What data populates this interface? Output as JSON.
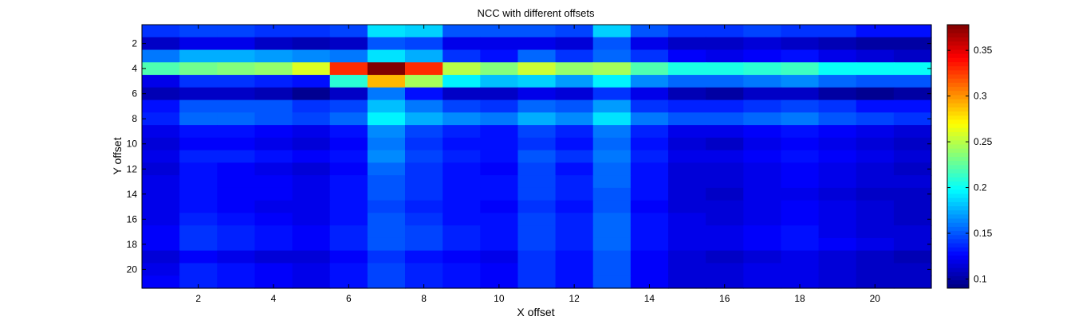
{
  "chart_data": {
    "type": "heatmap",
    "title": "NCC with different offsets",
    "xlabel": "X offset",
    "ylabel": "Y offset",
    "colormap": "jet",
    "x": [
      1,
      2,
      3,
      4,
      5,
      6,
      7,
      8,
      9,
      10,
      11,
      12,
      13,
      14,
      15,
      16,
      17,
      18,
      19,
      20,
      21
    ],
    "y": [
      1,
      2,
      3,
      4,
      5,
      6,
      7,
      8,
      9,
      10,
      11,
      12,
      13,
      14,
      15,
      16,
      17,
      18,
      19,
      20,
      21
    ],
    "xlim": [
      0.5,
      21.5
    ],
    "ylim": [
      0.5,
      21.5
    ],
    "y_direction": "reverse",
    "xticks": [
      2,
      4,
      6,
      8,
      10,
      12,
      14,
      16,
      18,
      20
    ],
    "yticks": [
      2,
      4,
      6,
      8,
      10,
      12,
      14,
      16,
      18,
      20
    ],
    "clim": [
      0.09,
      0.378
    ],
    "colorbar_ticks": [
      0.1,
      0.15,
      0.2,
      0.25,
      0.3,
      0.35
    ],
    "colorbar_tick_labels": [
      "0.1",
      "0.15",
      "0.2",
      "0.25",
      "0.3",
      "0.35"
    ],
    "values": [
      [
        0.14,
        0.145,
        0.145,
        0.14,
        0.14,
        0.145,
        0.19,
        0.185,
        0.15,
        0.15,
        0.15,
        0.145,
        0.185,
        0.15,
        0.14,
        0.14,
        0.145,
        0.14,
        0.14,
        0.13,
        0.13
      ],
      [
        0.11,
        0.12,
        0.12,
        0.11,
        0.105,
        0.11,
        0.15,
        0.145,
        0.12,
        0.12,
        0.12,
        0.115,
        0.15,
        0.12,
        0.11,
        0.11,
        0.115,
        0.11,
        0.105,
        0.1,
        0.1
      ],
      [
        0.16,
        0.175,
        0.175,
        0.17,
        0.165,
        0.16,
        0.19,
        0.175,
        0.14,
        0.13,
        0.155,
        0.14,
        0.155,
        0.14,
        0.125,
        0.12,
        0.125,
        0.13,
        0.12,
        0.115,
        0.11
      ],
      [
        0.22,
        0.23,
        0.235,
        0.24,
        0.26,
        0.33,
        0.378,
        0.33,
        0.25,
        0.235,
        0.255,
        0.24,
        0.245,
        0.22,
        0.205,
        0.205,
        0.21,
        0.215,
        0.2,
        0.2,
        0.2
      ],
      [
        0.12,
        0.14,
        0.14,
        0.135,
        0.13,
        0.21,
        0.29,
        0.245,
        0.195,
        0.18,
        0.185,
        0.17,
        0.195,
        0.165,
        0.155,
        0.155,
        0.16,
        0.165,
        0.155,
        0.15,
        0.15
      ],
      [
        0.105,
        0.11,
        0.11,
        0.105,
        0.095,
        0.11,
        0.16,
        0.13,
        0.11,
        0.11,
        0.12,
        0.115,
        0.14,
        0.12,
        0.105,
        0.1,
        0.11,
        0.11,
        0.1,
        0.095,
        0.1
      ],
      [
        0.13,
        0.15,
        0.15,
        0.15,
        0.14,
        0.145,
        0.18,
        0.16,
        0.145,
        0.14,
        0.155,
        0.15,
        0.17,
        0.14,
        0.135,
        0.135,
        0.14,
        0.145,
        0.14,
        0.13,
        0.13
      ],
      [
        0.135,
        0.155,
        0.155,
        0.15,
        0.145,
        0.155,
        0.195,
        0.175,
        0.165,
        0.16,
        0.175,
        0.165,
        0.19,
        0.16,
        0.15,
        0.15,
        0.155,
        0.16,
        0.15,
        0.145,
        0.14
      ],
      [
        0.12,
        0.13,
        0.13,
        0.125,
        0.12,
        0.13,
        0.165,
        0.145,
        0.135,
        0.13,
        0.145,
        0.135,
        0.16,
        0.135,
        0.12,
        0.12,
        0.125,
        0.13,
        0.125,
        0.12,
        0.115
      ],
      [
        0.115,
        0.125,
        0.125,
        0.12,
        0.115,
        0.125,
        0.16,
        0.14,
        0.13,
        0.13,
        0.14,
        0.13,
        0.155,
        0.13,
        0.115,
        0.11,
        0.12,
        0.125,
        0.12,
        0.115,
        0.11
      ],
      [
        0.12,
        0.135,
        0.135,
        0.13,
        0.125,
        0.13,
        0.165,
        0.145,
        0.135,
        0.13,
        0.15,
        0.14,
        0.16,
        0.135,
        0.12,
        0.12,
        0.125,
        0.13,
        0.125,
        0.12,
        0.115
      ],
      [
        0.115,
        0.13,
        0.125,
        0.12,
        0.115,
        0.125,
        0.155,
        0.14,
        0.13,
        0.125,
        0.145,
        0.13,
        0.155,
        0.13,
        0.115,
        0.115,
        0.12,
        0.125,
        0.12,
        0.115,
        0.11
      ],
      [
        0.12,
        0.13,
        0.125,
        0.125,
        0.12,
        0.13,
        0.15,
        0.14,
        0.13,
        0.13,
        0.145,
        0.135,
        0.155,
        0.13,
        0.115,
        0.115,
        0.12,
        0.125,
        0.12,
        0.115,
        0.115
      ],
      [
        0.12,
        0.13,
        0.125,
        0.125,
        0.12,
        0.13,
        0.15,
        0.14,
        0.13,
        0.13,
        0.145,
        0.135,
        0.15,
        0.13,
        0.115,
        0.11,
        0.12,
        0.12,
        0.115,
        0.11,
        0.11
      ],
      [
        0.12,
        0.13,
        0.125,
        0.12,
        0.12,
        0.13,
        0.145,
        0.135,
        0.13,
        0.125,
        0.14,
        0.13,
        0.15,
        0.125,
        0.115,
        0.115,
        0.12,
        0.125,
        0.12,
        0.115,
        0.11
      ],
      [
        0.12,
        0.135,
        0.13,
        0.125,
        0.12,
        0.13,
        0.15,
        0.14,
        0.13,
        0.13,
        0.145,
        0.135,
        0.155,
        0.13,
        0.12,
        0.115,
        0.12,
        0.125,
        0.12,
        0.115,
        0.11
      ],
      [
        0.125,
        0.14,
        0.135,
        0.13,
        0.125,
        0.135,
        0.15,
        0.145,
        0.135,
        0.13,
        0.145,
        0.135,
        0.155,
        0.13,
        0.12,
        0.12,
        0.125,
        0.13,
        0.12,
        0.115,
        0.115
      ],
      [
        0.125,
        0.14,
        0.135,
        0.13,
        0.125,
        0.135,
        0.15,
        0.145,
        0.135,
        0.13,
        0.145,
        0.135,
        0.155,
        0.13,
        0.12,
        0.12,
        0.125,
        0.13,
        0.125,
        0.12,
        0.115
      ],
      [
        0.115,
        0.125,
        0.12,
        0.115,
        0.115,
        0.125,
        0.14,
        0.13,
        0.125,
        0.12,
        0.14,
        0.13,
        0.15,
        0.125,
        0.115,
        0.11,
        0.115,
        0.12,
        0.115,
        0.11,
        0.105
      ],
      [
        0.12,
        0.135,
        0.13,
        0.125,
        0.12,
        0.13,
        0.145,
        0.135,
        0.13,
        0.125,
        0.14,
        0.13,
        0.15,
        0.125,
        0.115,
        0.115,
        0.12,
        0.12,
        0.115,
        0.11,
        0.11
      ],
      [
        0.125,
        0.135,
        0.13,
        0.125,
        0.12,
        0.13,
        0.145,
        0.135,
        0.13,
        0.125,
        0.14,
        0.13,
        0.15,
        0.125,
        0.115,
        0.115,
        0.12,
        0.12,
        0.115,
        0.11,
        0.11
      ]
    ]
  }
}
